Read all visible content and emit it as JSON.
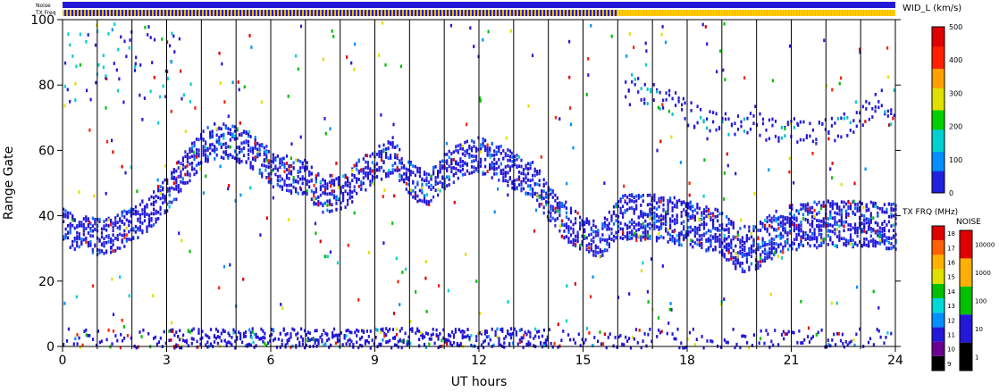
{
  "chart_data": {
    "type": "heatmap",
    "title": "",
    "xlabel": "UT hours",
    "ylabel": "Range Gate",
    "xlim": [
      0,
      24
    ],
    "ylim": [
      0,
      100
    ],
    "x_ticks": [
      "0",
      "3",
      "6",
      "9",
      "12",
      "15",
      "18",
      "21",
      "24"
    ],
    "y_ticks": [
      "0",
      "20",
      "40",
      "60",
      "80",
      "100"
    ],
    "grid": "vertical lines every 1 hour",
    "top_strips": [
      {
        "label": "Noise",
        "color": "#2418d8"
      },
      {
        "label": "TX Freq",
        "color": "#ffb000",
        "change_at_hour": 16,
        "before_color": "#2418d8"
      }
    ],
    "color_scales": [
      {
        "label": "WID_L (km/s)",
        "ticks": [
          "0",
          "100",
          "200",
          "300",
          "400",
          "500"
        ],
        "range": [
          0,
          500
        ],
        "colors": [
          "#2020e0",
          "#0090ff",
          "#00d0d0",
          "#00d000",
          "#e0e000",
          "#ffa000",
          "#ff2000",
          "#e00000"
        ]
      },
      {
        "label": "TX FRQ (MHz)",
        "ticks": [
          "9",
          "10",
          "11",
          "12",
          "13",
          "14",
          "15",
          "16",
          "17",
          "18"
        ],
        "colors": [
          "#000000",
          "#6a0090",
          "#2418d8",
          "#0090ff",
          "#00d8d8",
          "#00c000",
          "#e0e000",
          "#ffb000",
          "#ff6000",
          "#e00000"
        ]
      },
      {
        "label": "NOISE",
        "ticks": [
          "1",
          "10",
          "100",
          "1000",
          "10000"
        ],
        "colors": [
          "#000000",
          "#2418d8",
          "#00c000",
          "#ffb000",
          "#e00000"
        ]
      }
    ],
    "band_centers": [
      {
        "h": 0.0,
        "g": 37
      },
      {
        "h": 0.5,
        "g": 35
      },
      {
        "h": 1.0,
        "g": 34
      },
      {
        "h": 1.5,
        "g": 35
      },
      {
        "h": 2.0,
        "g": 38
      },
      {
        "h": 2.5,
        "g": 42
      },
      {
        "h": 3.0,
        "g": 47
      },
      {
        "h": 3.5,
        "g": 55
      },
      {
        "h": 4.0,
        "g": 61
      },
      {
        "h": 4.5,
        "g": 64
      },
      {
        "h": 5.0,
        "g": 62
      },
      {
        "h": 5.5,
        "g": 60
      },
      {
        "h": 6.0,
        "g": 55
      },
      {
        "h": 6.5,
        "g": 53
      },
      {
        "h": 7.0,
        "g": 52
      },
      {
        "h": 7.5,
        "g": 46
      },
      {
        "h": 8.0,
        "g": 47
      },
      {
        "h": 8.5,
        "g": 52
      },
      {
        "h": 9.0,
        "g": 56
      },
      {
        "h": 9.5,
        "g": 59
      },
      {
        "h": 10.0,
        "g": 52
      },
      {
        "h": 10.5,
        "g": 48
      },
      {
        "h": 11.0,
        "g": 54
      },
      {
        "h": 11.5,
        "g": 58
      },
      {
        "h": 12.0,
        "g": 59
      },
      {
        "h": 12.5,
        "g": 57
      },
      {
        "h": 13.0,
        "g": 54
      },
      {
        "h": 13.5,
        "g": 52
      },
      {
        "h": 14.0,
        "g": 44
      },
      {
        "h": 14.5,
        "g": 38
      },
      {
        "h": 15.0,
        "g": 35
      },
      {
        "h": 15.5,
        "g": 33
      },
      {
        "h": 16.0,
        "g": 40
      },
      {
        "h": 17.0,
        "g": 40
      },
      {
        "h": 18.0,
        "g": 38
      },
      {
        "h": 19.0,
        "g": 35
      },
      {
        "h": 19.5,
        "g": 30
      },
      {
        "h": 20.0,
        "g": 31
      },
      {
        "h": 20.5,
        "g": 35
      },
      {
        "h": 21.0,
        "g": 37
      },
      {
        "h": 22.0,
        "g": 38
      },
      {
        "h": 23.0,
        "g": 38
      },
      {
        "h": 24.0,
        "g": 37
      }
    ],
    "upper_band": [
      {
        "h": 16.5,
        "g": 80
      },
      {
        "h": 17.5,
        "g": 75
      },
      {
        "h": 18.5,
        "g": 69
      },
      {
        "h": 19.5,
        "g": 69
      },
      {
        "h": 20.5,
        "g": 67
      },
      {
        "h": 21.5,
        "g": 66
      },
      {
        "h": 22.5,
        "g": 68
      },
      {
        "h": 23.5,
        "g": 75
      }
    ],
    "ground_scatter_gates": [
      0,
      6
    ]
  }
}
